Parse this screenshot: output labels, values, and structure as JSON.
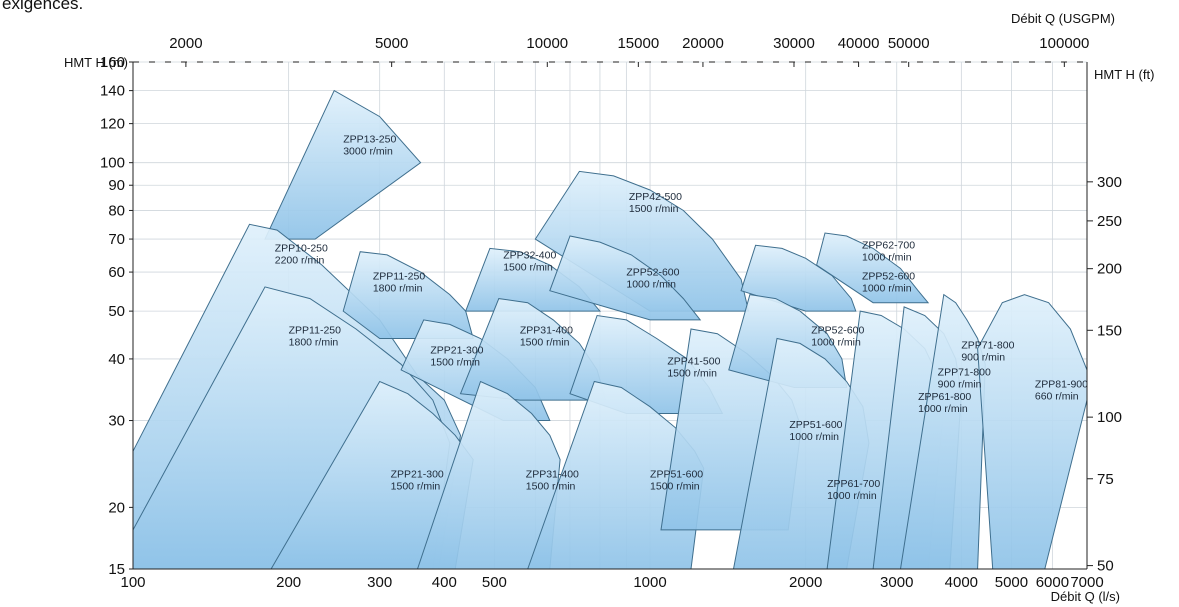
{
  "page": {
    "intro_text": "exigences."
  },
  "chart_data": {
    "type": "area",
    "title": "",
    "xlabel": "Débit Q (l/s)",
    "x2label": "Débit Q (USGPM)",
    "ylabel": "HMT H (m)",
    "y2label": "HMT H (ft)",
    "xscale": "log",
    "yscale": "log",
    "xlim": [
      100,
      7000
    ],
    "ylim": [
      15,
      160
    ],
    "grid": true,
    "xticks": [
      100,
      200,
      300,
      400,
      500,
      1000,
      2000,
      3000,
      4000,
      5000,
      6000,
      7000
    ],
    "x2ticks": [
      2000,
      5000,
      10000,
      15000,
      20000,
      30000,
      40000,
      50000,
      100000
    ],
    "yticks": [
      15,
      20,
      30,
      40,
      50,
      60,
      70,
      80,
      90,
      100,
      120,
      140,
      160
    ],
    "y2ticks": [
      50,
      75,
      100,
      150,
      200,
      250,
      300
    ],
    "series": [
      {
        "name": "ZPP13-250 3000 r/min",
        "model": "ZPP13-250",
        "speed": "3000 r/min",
        "points": [
          [
            180,
            70
          ],
          [
            245,
            140
          ],
          [
            300,
            124
          ],
          [
            360,
            100
          ],
          [
            225,
            70
          ]
        ]
      },
      {
        "name": "ZPP10-250 2200 r/min",
        "model": "ZPP10-250",
        "speed": "2200 r/min",
        "points": [
          [
            100,
            26
          ],
          [
            168,
            75
          ],
          [
            190,
            73
          ],
          [
            232,
            62
          ],
          [
            300,
            48
          ],
          [
            355,
            37
          ],
          [
            400,
            33
          ],
          [
            430,
            28
          ],
          [
            390,
            15
          ],
          [
            100,
            15
          ]
        ]
      },
      {
        "name": "ZPP11-250 1800 r/min",
        "model": "ZPP11-250",
        "speed": "1800 r/min",
        "points": [
          [
            100,
            18
          ],
          [
            180,
            56
          ],
          [
            220,
            53
          ],
          [
            270,
            46
          ],
          [
            330,
            39
          ],
          [
            380,
            33
          ],
          [
            410,
            27
          ],
          [
            380,
            15
          ],
          [
            100,
            15
          ]
        ]
      },
      {
        "name": "ZPP11-250 1800 r/min",
        "model": "ZPP11-250",
        "speed": "1800 r/min",
        "points": [
          [
            255,
            50
          ],
          [
            275,
            66
          ],
          [
            310,
            65
          ],
          [
            360,
            60
          ],
          [
            410,
            54
          ],
          [
            440,
            50
          ],
          [
            455,
            44
          ],
          [
            300,
            44
          ]
        ]
      },
      {
        "name": "ZPP21-300 1500 r/min",
        "model": "ZPP21-300",
        "speed": "1500 r/min",
        "points": [
          [
            330,
            38
          ],
          [
            365,
            48
          ],
          [
            410,
            47
          ],
          [
            470,
            44
          ],
          [
            530,
            40
          ],
          [
            600,
            35
          ],
          [
            640,
            30
          ],
          [
            520,
            30
          ]
        ]
      },
      {
        "name": "ZPP21-300 1500 r/min",
        "model": "ZPP21-300",
        "speed": "1500 r/min",
        "points": [
          [
            185,
            15
          ],
          [
            300,
            36
          ],
          [
            340,
            34
          ],
          [
            380,
            31
          ],
          [
            420,
            28
          ],
          [
            455,
            25
          ],
          [
            420,
            15
          ]
        ]
      },
      {
        "name": "ZPP32-400 1500 r/min",
        "model": "ZPP32-400",
        "speed": "1500 r/min",
        "points": [
          [
            440,
            50
          ],
          [
            490,
            67
          ],
          [
            560,
            66
          ],
          [
            640,
            62
          ],
          [
            730,
            56
          ],
          [
            800,
            50
          ],
          [
            560,
            50
          ]
        ]
      },
      {
        "name": "ZPP31-400 1500 r/min",
        "model": "ZPP31-400",
        "speed": "1500 r/min",
        "points": [
          [
            430,
            34
          ],
          [
            510,
            53
          ],
          [
            580,
            52
          ],
          [
            650,
            48
          ],
          [
            730,
            43
          ],
          [
            790,
            38
          ],
          [
            820,
            33
          ],
          [
            560,
            33
          ]
        ]
      },
      {
        "name": "ZPP31-400 1500 r/min",
        "model": "ZPP31-400",
        "speed": "1500 r/min",
        "points": [
          [
            355,
            15
          ],
          [
            470,
            36
          ],
          [
            530,
            34
          ],
          [
            590,
            31
          ],
          [
            640,
            28
          ],
          [
            670,
            25
          ],
          [
            640,
            15
          ]
        ]
      },
      {
        "name": "ZPP42-500 1500 r/min",
        "model": "ZPP42-500",
        "speed": "1500 r/min",
        "points": [
          [
            600,
            70
          ],
          [
            730,
            96
          ],
          [
            850,
            94
          ],
          [
            1000,
            88
          ],
          [
            1160,
            80
          ],
          [
            1320,
            70
          ],
          [
            1500,
            58
          ],
          [
            1550,
            50
          ],
          [
            1000,
            50
          ]
        ]
      },
      {
        "name": "ZPP52-600 1000 r/min",
        "model": "ZPP52-600",
        "speed": "1000 r/min",
        "points": [
          [
            640,
            55
          ],
          [
            700,
            71
          ],
          [
            800,
            69
          ],
          [
            920,
            65
          ],
          [
            1050,
            59
          ],
          [
            1160,
            53
          ],
          [
            1250,
            48
          ],
          [
            1000,
            48
          ]
        ]
      },
      {
        "name": "ZPP41-500 1500 r/min",
        "model": "ZPP41-500",
        "speed": "1500 r/min",
        "points": [
          [
            700,
            34
          ],
          [
            790,
            49
          ],
          [
            900,
            48
          ],
          [
            1030,
            44
          ],
          [
            1180,
            40
          ],
          [
            1300,
            35
          ],
          [
            1380,
            31
          ],
          [
            900,
            31
          ]
        ]
      },
      {
        "name": "ZPP51-600 1500 r/min",
        "model": "ZPP51-600",
        "speed": "1500 r/min",
        "points": [
          [
            580,
            15
          ],
          [
            780,
            36
          ],
          [
            880,
            35
          ],
          [
            1000,
            32
          ],
          [
            1120,
            29
          ],
          [
            1220,
            26
          ],
          [
            1270,
            24
          ],
          [
            1200,
            15
          ]
        ]
      },
      {
        "name": "ZPP51-600 1000 r/min",
        "model": "ZPP51-600",
        "speed": "1000 r/min",
        "points": [
          [
            1050,
            18
          ],
          [
            1200,
            46
          ],
          [
            1350,
            45
          ],
          [
            1540,
            41
          ],
          [
            1720,
            37
          ],
          [
            1880,
            33
          ],
          [
            1960,
            29
          ],
          [
            1850,
            18
          ]
        ]
      },
      {
        "name": "ZPP52-600 1000 r/min",
        "model": "ZPP52-600",
        "speed": "1000 r/min",
        "points": [
          [
            1500,
            55
          ],
          [
            1600,
            68
          ],
          [
            1800,
            67
          ],
          [
            2000,
            64
          ],
          [
            2250,
            59
          ],
          [
            2450,
            53
          ],
          [
            2500,
            50
          ],
          [
            2000,
            50
          ]
        ]
      },
      {
        "name": "ZPP52-600 1000 r/min",
        "model": "ZPP52-600",
        "speed": "1000 r/min",
        "points": [
          [
            1420,
            38
          ],
          [
            1560,
            54
          ],
          [
            1750,
            53
          ],
          [
            1950,
            50
          ],
          [
            2200,
            45
          ],
          [
            2350,
            40
          ],
          [
            2400,
            35
          ],
          [
            1900,
            35
          ]
        ]
      },
      {
        "name": "ZPP61-700 1000 r/min",
        "model": "ZPP61-700",
        "speed": "1000 r/min",
        "points": [
          [
            1450,
            15
          ],
          [
            1760,
            44
          ],
          [
            1950,
            43
          ],
          [
            2180,
            40
          ],
          [
            2400,
            36
          ],
          [
            2580,
            32
          ],
          [
            2650,
            27
          ],
          [
            2400,
            15
          ]
        ]
      },
      {
        "name": "ZPP62-700 1000 r/min",
        "model": "ZPP62-700",
        "speed": "1000 r/min",
        "points": [
          [
            2100,
            62
          ],
          [
            2180,
            72
          ],
          [
            2400,
            71
          ],
          [
            2700,
            67
          ],
          [
            3050,
            61
          ],
          [
            3300,
            55
          ],
          [
            3450,
            52
          ],
          [
            2700,
            52
          ]
        ]
      },
      {
        "name": "ZPP61-800 1000 r/min",
        "model": "ZPP61-800",
        "speed": "1000 r/min",
        "points": [
          [
            2200,
            15
          ],
          [
            2550,
            50
          ],
          [
            2800,
            49
          ],
          [
            3100,
            46
          ],
          [
            3400,
            42
          ],
          [
            3600,
            37
          ],
          [
            3700,
            32
          ],
          [
            3450,
            15
          ]
        ]
      },
      {
        "name": "ZPP71-800 900 r/min",
        "model": "ZPP71-800",
        "speed": "900 r/min",
        "points": [
          [
            2700,
            15
          ],
          [
            3100,
            51
          ],
          [
            3400,
            49
          ],
          [
            3700,
            45
          ],
          [
            3900,
            40
          ],
          [
            4000,
            34
          ],
          [
            3800,
            15
          ]
        ]
      },
      {
        "name": "ZPP71-800 900 r/min",
        "model": "ZPP71-800",
        "speed": "900 r/min",
        "points": [
          [
            3050,
            15
          ],
          [
            3700,
            54
          ],
          [
            3900,
            52
          ],
          [
            4100,
            48
          ],
          [
            4300,
            44
          ],
          [
            4450,
            39
          ],
          [
            4300,
            15
          ]
        ]
      },
      {
        "name": "ZPP81-900 660 r/min",
        "model": "ZPP81-900",
        "speed": "660 r/min",
        "points": [
          [
            4600,
            15
          ],
          [
            4300,
            42
          ],
          [
            4800,
            52
          ],
          [
            5300,
            54
          ],
          [
            5900,
            52
          ],
          [
            6500,
            46
          ],
          [
            7000,
            38
          ],
          [
            7000,
            33
          ],
          [
            5800,
            15
          ]
        ]
      }
    ],
    "labels": [
      {
        "model": "ZPP13-250",
        "speed": "3000 r/min",
        "at": [
          255,
          110
        ]
      },
      {
        "model": "ZPP10-250",
        "speed": "2200 r/min",
        "at": [
          188,
          66
        ]
      },
      {
        "model": "ZPP11-250",
        "speed": "1800 r/min",
        "at": [
          291,
          58
        ]
      },
      {
        "model": "ZPP11-250",
        "speed": "1800 r/min",
        "at": [
          200,
          45
        ]
      },
      {
        "model": "ZPP21-300",
        "speed": "1500 r/min",
        "at": [
          376,
          41
        ]
      },
      {
        "model": "ZPP32-400",
        "speed": "1500 r/min",
        "at": [
          520,
          64
        ]
      },
      {
        "model": "ZPP31-400",
        "speed": "1500 r/min",
        "at": [
          560,
          45
        ]
      },
      {
        "model": "ZPP42-500",
        "speed": "1500 r/min",
        "at": [
          910,
          84
        ]
      },
      {
        "model": "ZPP52-600",
        "speed": "1000 r/min",
        "at": [
          900,
          59
        ]
      },
      {
        "model": "ZPP41-500",
        "speed": "1500 r/min",
        "at": [
          1080,
          39
        ]
      },
      {
        "model": "ZPP62-700",
        "speed": "1000 r/min",
        "at": [
          2570,
          67
        ]
      },
      {
        "model": "ZPP52-600",
        "speed": "1000 r/min",
        "at": [
          2570,
          58
        ]
      },
      {
        "model": "ZPP52-600",
        "speed": "1000 r/min",
        "at": [
          2050,
          45
        ]
      },
      {
        "model": "ZPP71-800",
        "speed": "900 r/min",
        "at": [
          4000,
          42
        ]
      },
      {
        "model": "ZPP71-800",
        "speed": "900 r/min",
        "at": [
          3600,
          37
        ]
      },
      {
        "model": "ZPP61-800",
        "speed": "1000 r/min",
        "at": [
          3300,
          33
        ]
      },
      {
        "model": "ZPP81-900",
        "speed": "660 r/min",
        "at": [
          5550,
          35
        ]
      },
      {
        "model": "ZPP51-600",
        "speed": "1000 r/min",
        "at": [
          1860,
          29
        ]
      },
      {
        "model": "ZPP21-300",
        "speed": "1500 r/min",
        "at": [
          315,
          23
        ]
      },
      {
        "model": "ZPP31-400",
        "speed": "1500 r/min",
        "at": [
          575,
          23
        ]
      },
      {
        "model": "ZPP51-600",
        "speed": "1500 r/min",
        "at": [
          1000,
          23
        ]
      },
      {
        "model": "ZPP61-700",
        "speed": "1000 r/min",
        "at": [
          2200,
          22
        ]
      }
    ],
    "colors": {
      "fill_light": "#dff0fb",
      "fill_dark": "#8fc3e8",
      "edge": "#3f6f8e",
      "grid": "#cfd6dc"
    }
  }
}
